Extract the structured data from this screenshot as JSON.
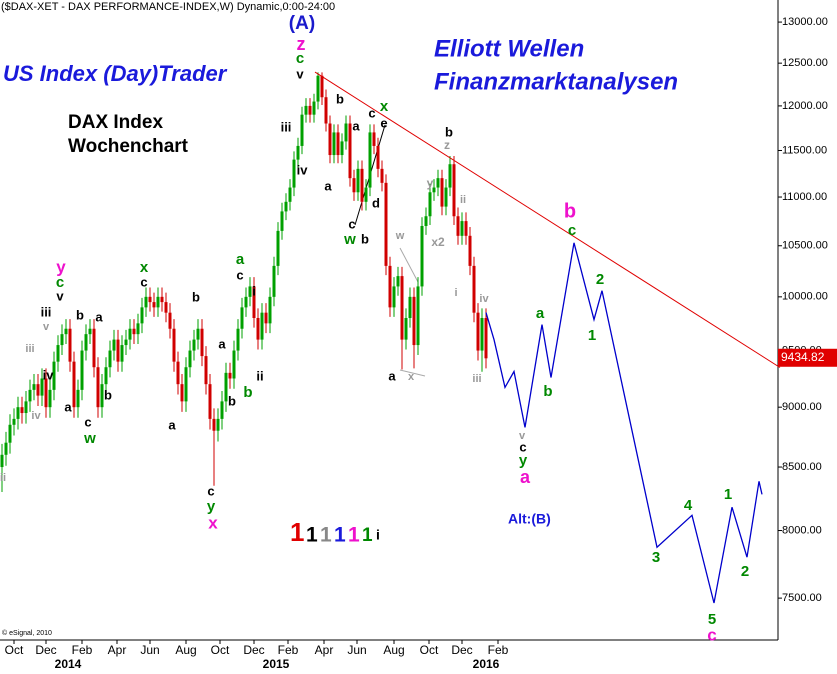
{
  "chart_data": {
    "type": "candlestick",
    "title": "($DAX-XET - DAX PERFORMANCE-INDEX,W) Dynamic,0:00-24:00",
    "x": [
      0,
      1,
      2,
      3,
      4,
      5,
      6,
      7,
      8,
      9,
      10,
      11,
      12,
      13,
      14,
      15,
      16,
      17,
      18,
      19,
      20,
      21,
      22,
      23,
      24,
      25,
      26,
      27,
      28,
      29,
      30,
      31,
      32,
      33,
      34,
      35,
      36,
      37,
      38,
      39,
      40,
      41,
      42,
      43,
      44,
      45,
      46,
      47,
      48,
      49,
      50,
      51,
      52,
      53,
      54,
      55,
      56,
      57,
      58,
      59,
      60,
      61,
      62,
      63,
      64,
      65,
      66,
      67,
      68,
      69,
      70,
      71,
      72,
      73,
      74,
      75,
      76,
      77,
      78,
      79,
      80,
      81,
      82,
      83,
      84,
      85,
      86,
      87,
      88,
      89,
      90,
      91,
      92,
      93,
      94,
      95,
      96,
      97,
      98,
      99,
      100,
      101,
      102,
      103,
      104,
      105,
      106,
      107,
      108,
      109,
      110,
      111,
      112,
      113,
      114,
      115,
      116,
      117,
      118,
      119,
      120,
      121
    ],
    "open": [
      8500,
      8600,
      8700,
      8850,
      8900,
      9000,
      8950,
      9050,
      9150,
      9200,
      9100,
      9250,
      9000,
      9150,
      9400,
      9550,
      9650,
      9700,
      9400,
      9000,
      9150,
      9500,
      9650,
      9700,
      9350,
      9000,
      9200,
      9350,
      9500,
      9600,
      9400,
      9550,
      9600,
      9700,
      9650,
      9750,
      9900,
      10000,
      9950,
      9900,
      10000,
      9950,
      9850,
      9700,
      9400,
      9200,
      9050,
      9350,
      9500,
      9600,
      9700,
      9450,
      9200,
      8900,
      8800,
      8900,
      9050,
      9300,
      9250,
      9500,
      9700,
      9900,
      10000,
      10100,
      9800,
      9600,
      9850,
      9750,
      10000,
      10300,
      10650,
      10850,
      10950,
      11100,
      11400,
      11550,
      11900,
      12000,
      11900,
      12050,
      12350,
      12100,
      11800,
      11450,
      11700,
      11450,
      11600,
      11800,
      11200,
      11050,
      11300,
      10950,
      11100,
      11700,
      11550,
      11300,
      11150,
      10300,
      9900,
      10100,
      10200,
      9600,
      9800,
      10000,
      9550,
      10100,
      10700,
      10800,
      11050,
      11100,
      11200,
      10900,
      11100,
      11350,
      10800,
      10600,
      10750,
      10600,
      10300,
      9850,
      9500,
      9800
    ],
    "high": [
      8690,
      8790,
      8940,
      8990,
      9090,
      9090,
      9140,
      9240,
      9290,
      9290,
      9340,
      9340,
      9240,
      9490,
      9640,
      9740,
      9790,
      9790,
      9490,
      9240,
      9590,
      9740,
      9790,
      9790,
      9440,
      9290,
      9440,
      9590,
      9690,
      9690,
      9640,
      9690,
      9790,
      9790,
      9840,
      9990,
      10090,
      10090,
      10040,
      10090,
      10090,
      10040,
      9940,
      9790,
      9490,
      9290,
      9440,
      9590,
      9690,
      9790,
      9790,
      9540,
      9290,
      8990,
      8990,
      9140,
      9390,
      9390,
      9590,
      9790,
      9990,
      10090,
      10190,
      10190,
      9890,
      9940,
      9940,
      10090,
      10390,
      10740,
      10940,
      11040,
      11190,
      11490,
      11640,
      11990,
      12090,
      12090,
      12140,
      12390,
      12390,
      12190,
      11890,
      11790,
      11790,
      11690,
      11890,
      11890,
      11290,
      11390,
      11390,
      11190,
      11790,
      11790,
      11640,
      11390,
      11240,
      10390,
      10190,
      10290,
      10290,
      9890,
      10090,
      10090,
      10190,
      10790,
      10890,
      11140,
      11190,
      11290,
      11290,
      11190,
      11440,
      11440,
      10890,
      10840,
      10840,
      10690,
      10390,
      9940,
      9890,
      9890
    ],
    "low": [
      8300,
      8510,
      8610,
      8760,
      8810,
      8860,
      8860,
      8960,
      9060,
      9010,
      9010,
      8910,
      8910,
      9060,
      9310,
      9460,
      9560,
      9310,
      8910,
      8910,
      9060,
      9410,
      9560,
      9260,
      8910,
      8910,
      9110,
      9260,
      9410,
      9310,
      9310,
      9460,
      9510,
      9560,
      9560,
      9660,
      9810,
      9860,
      9810,
      9810,
      9860,
      9760,
      9610,
      9310,
      9110,
      8960,
      8960,
      9260,
      9410,
      9510,
      9360,
      9110,
      8810,
      8350,
      8710,
      8810,
      8960,
      9160,
      9160,
      9410,
      9610,
      9810,
      9910,
      9710,
      9510,
      9510,
      9660,
      9660,
      9910,
      10210,
      10560,
      10760,
      10860,
      11010,
      11310,
      11460,
      11810,
      11810,
      11810,
      11960,
      12010,
      11710,
      11360,
      11360,
      11360,
      11360,
      11510,
      11110,
      10960,
      10960,
      10860,
      10860,
      11010,
      11460,
      11210,
      11060,
      10210,
      9810,
      9810,
      10010,
      9330,
      9510,
      9710,
      9340,
      9460,
      10010,
      10610,
      10710,
      10960,
      11010,
      10810,
      10810,
      11010,
      10710,
      10510,
      10510,
      10510,
      10210,
      9760,
      9410,
      9310,
      9340
    ],
    "close": [
      8600,
      8700,
      8850,
      8900,
      9000,
      8950,
      9050,
      9150,
      9200,
      9100,
      9250,
      9000,
      9150,
      9400,
      9550,
      9650,
      9700,
      9400,
      9000,
      9150,
      9500,
      9650,
      9700,
      9350,
      9000,
      9200,
      9350,
      9500,
      9600,
      9400,
      9550,
      9600,
      9700,
      9650,
      9750,
      9900,
      10000,
      9950,
      9900,
      10000,
      9950,
      9850,
      9700,
      9400,
      9200,
      9050,
      9350,
      9500,
      9600,
      9700,
      9450,
      9200,
      8900,
      8800,
      8900,
      9050,
      9300,
      9250,
      9500,
      9700,
      9900,
      10000,
      10100,
      9800,
      9600,
      9850,
      9750,
      10000,
      10300,
      10650,
      10850,
      10950,
      11100,
      11400,
      11550,
      11900,
      12000,
      11900,
      12050,
      12350,
      12100,
      11800,
      11450,
      11700,
      11450,
      11600,
      11800,
      11200,
      11050,
      11300,
      10950,
      11100,
      11700,
      11550,
      11300,
      11150,
      10300,
      9900,
      10100,
      10200,
      9600,
      9800,
      10000,
      9550,
      10100,
      10700,
      10800,
      11050,
      11100,
      11200,
      10900,
      11100,
      11350,
      10800,
      10600,
      10750,
      10600,
      10300,
      9850,
      9500,
      9800,
      9430
    ],
    "up_color": "#00a000",
    "down_color": "#d00000",
    "xlim": [
      -0.5,
      194
    ],
    "xticks": [
      {
        "value": 3,
        "label": "Oct"
      },
      {
        "value": 11,
        "label": "Dec"
      },
      {
        "value": 20,
        "label": "Feb"
      },
      {
        "value": 28.75,
        "label": "Apr"
      },
      {
        "value": 37,
        "label": "Jun"
      },
      {
        "value": 46,
        "label": "Aug"
      },
      {
        "value": 54.5,
        "label": "Oct"
      },
      {
        "value": 63,
        "label": "Dec"
      },
      {
        "value": 71.5,
        "label": "Feb"
      },
      {
        "value": 80.5,
        "label": "Apr"
      },
      {
        "value": 88.75,
        "label": "Jun"
      },
      {
        "value": 98,
        "label": "Aug"
      },
      {
        "value": 106.75,
        "label": "Oct"
      },
      {
        "value": 115,
        "label": "Dec"
      },
      {
        "value": 124,
        "label": "Feb"
      }
    ],
    "year_ticks": [
      {
        "value": 16.5,
        "label": "2014"
      },
      {
        "value": 68.5,
        "label": "2015"
      },
      {
        "value": 121,
        "label": "2016"
      }
    ],
    "ylim": [
      7206,
      13277
    ],
    "log_scale": true,
    "yticks": [
      {
        "value": 7500,
        "label": "7500.00"
      },
      {
        "value": 8000,
        "label": "8000.00"
      },
      {
        "value": 8500,
        "label": "8500.00"
      },
      {
        "value": 9000,
        "label": "9000.00"
      },
      {
        "value": 9500,
        "label": "9500.00"
      },
      {
        "value": 10000,
        "label": "10000.00"
      },
      {
        "value": 10500,
        "label": "10500.00"
      },
      {
        "value": 11000,
        "label": "11000.00"
      },
      {
        "value": 11500,
        "label": "11500.00"
      },
      {
        "value": 12000,
        "label": "12000.00"
      },
      {
        "value": 12500,
        "label": "12500.00"
      },
      {
        "value": 13000,
        "label": "13000.00"
      }
    ],
    "last_price": 9434.82,
    "last_price_color": "#e00000",
    "trendline": {
      "x": [
        78.25,
        194.5
      ],
      "values": [
        12394,
        9348
      ],
      "color": "#e00000"
    },
    "projection": {
      "x": [
        121,
        123,
        125.75,
        128,
        130.75,
        135,
        137.25,
        143,
        148,
        150,
        163.75,
        172.5,
        178,
        182.5,
        186.25,
        189.25,
        190
      ],
      "values": [
        9851,
        9600,
        9172,
        9312,
        8828,
        9738,
        9259,
        10530,
        9785,
        10059,
        7874,
        8117,
        7465,
        8180,
        7799,
        8385,
        8281
      ],
      "color": "#0000cc"
    },
    "annotations": [
      {
        "text": "(A)",
        "color": "#1a1acc"
      },
      {
        "text": "US Index (Day)Trader",
        "color": "#1a1adb"
      },
      {
        "text": "DAX Index",
        "color": "#000000"
      },
      {
        "text": "Wochenchart",
        "color": "#000000"
      },
      {
        "text": "Elliott Wellen",
        "color": "#1a1adb"
      },
      {
        "text": "Finanzmarktanalysen",
        "color": "#1a1adb"
      },
      {
        "text": "Alt:(B)",
        "color": "#1a1adb"
      },
      {
        "text": "1",
        "color": "#e00000"
      },
      {
        "text": "1",
        "color": "#000000"
      },
      {
        "text": "1",
        "color": "#888888"
      },
      {
        "text": "1",
        "color": "#1a1adb"
      },
      {
        "text": "1",
        "color": "#ee11cc"
      },
      {
        "text": "1",
        "color": "#008800"
      },
      {
        "text": "i",
        "color": "#000000"
      },
      {
        "text": "© eSignal, 2010",
        "color": "#000000"
      },
      {
        "text": "z",
        "color": "#ee11cc"
      },
      {
        "text": "c",
        "color": "#008800"
      },
      {
        "text": "v",
        "color": "#000000"
      },
      {
        "text": "iii",
        "color": "#000000"
      },
      {
        "text": "iv",
        "color": "#000000"
      },
      {
        "text": "a",
        "color": "#000000"
      },
      {
        "text": "b",
        "color": "#000000"
      },
      {
        "text": "a",
        "color": "#000000"
      },
      {
        "text": "c",
        "color": "#000000"
      },
      {
        "text": "e",
        "color": "#000000"
      },
      {
        "text": "x",
        "color": "#008800"
      },
      {
        "text": "c",
        "color": "#000000"
      },
      {
        "text": "w",
        "color": "#008800"
      },
      {
        "text": "b",
        "color": "#000000"
      },
      {
        "text": "d",
        "color": "#000000"
      },
      {
        "text": "b",
        "color": "#000000"
      },
      {
        "text": "z",
        "color": "#999999"
      },
      {
        "text": "y",
        "color": "#999999"
      },
      {
        "text": "ii",
        "color": "#999999"
      },
      {
        "text": "x2",
        "color": "#999999"
      },
      {
        "text": "w",
        "color": "#999999"
      },
      {
        "text": "x",
        "color": "#999999"
      },
      {
        "text": "a",
        "color": "#000000"
      },
      {
        "text": "i",
        "color": "#999999"
      },
      {
        "text": "iv",
        "color": "#999999"
      },
      {
        "text": "iii",
        "color": "#999999"
      },
      {
        "text": "b",
        "color": "#ee11cc"
      },
      {
        "text": "c",
        "color": "#008800"
      },
      {
        "text": "2",
        "color": "#008800"
      },
      {
        "text": "1",
        "color": "#008800"
      },
      {
        "text": "a",
        "color": "#008800"
      },
      {
        "text": "b",
        "color": "#008800"
      },
      {
        "text": "v",
        "color": "#999999"
      },
      {
        "text": "c",
        "color": "#000000"
      },
      {
        "text": "y",
        "color": "#008800"
      },
      {
        "text": "a",
        "color": "#ee11cc"
      },
      {
        "text": "3",
        "color": "#008800"
      },
      {
        "text": "4",
        "color": "#008800"
      },
      {
        "text": "5",
        "color": "#008800"
      },
      {
        "text": "c",
        "color": "#ee11cc"
      },
      {
        "text": "1",
        "color": "#008800"
      },
      {
        "text": "2",
        "color": "#008800"
      },
      {
        "text": "y",
        "color": "#ee11cc"
      },
      {
        "text": "c",
        "color": "#008800"
      },
      {
        "text": "v",
        "color": "#000000"
      },
      {
        "text": "iii",
        "color": "#000000"
      },
      {
        "text": "v",
        "color": "#999999"
      },
      {
        "text": "iii",
        "color": "#999999"
      },
      {
        "text": "iv",
        "color": "#000000"
      },
      {
        "text": "iv",
        "color": "#999999"
      },
      {
        "text": "a",
        "color": "#000000"
      },
      {
        "text": "ii",
        "color": "#999999"
      },
      {
        "text": "c",
        "color": "#000000"
      },
      {
        "text": "w",
        "color": "#008800"
      },
      {
        "text": "b",
        "color": "#000000"
      },
      {
        "text": "a",
        "color": "#000000"
      },
      {
        "text": "b",
        "color": "#000000"
      },
      {
        "text": "x",
        "color": "#008800"
      },
      {
        "text": "c",
        "color": "#000000"
      },
      {
        "text": "b",
        "color": "#000000"
      },
      {
        "text": "a",
        "color": "#000000"
      },
      {
        "text": "a",
        "color": "#008800"
      },
      {
        "text": "c",
        "color": "#000000"
      },
      {
        "text": "i",
        "color": "#000000"
      },
      {
        "text": "a",
        "color": "#000000"
      },
      {
        "text": "b",
        "color": "#000000"
      },
      {
        "text": "b",
        "color": "#008800"
      },
      {
        "text": "ii",
        "color": "#000000"
      },
      {
        "text": "c",
        "color": "#000000"
      },
      {
        "text": "y",
        "color": "#008800"
      },
      {
        "text": "x",
        "color": "#ee11cc"
      }
    ]
  }
}
